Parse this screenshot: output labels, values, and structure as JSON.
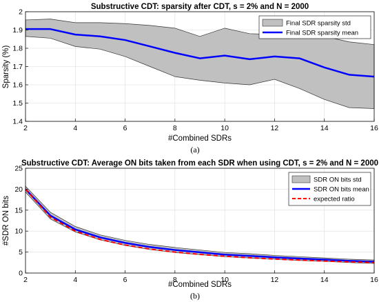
{
  "caption_a": "(a)",
  "caption_b": "(b)",
  "colors": {
    "band_fill": "#c0c0c0",
    "band_edge": "#333333",
    "mean_line": "#0000ff",
    "expected_line": "#ff0000"
  },
  "chart_data": [
    {
      "type": "area",
      "title": "Substructive CDT:  sparsity after CDT, s = 2% and N = 2000",
      "xlabel": "#Combined SDRs",
      "ylabel": "Sparsity (%)",
      "xlim": [
        2,
        16
      ],
      "ylim": [
        1.4,
        2.0
      ],
      "xticks": [
        2,
        4,
        6,
        8,
        10,
        12,
        14,
        16
      ],
      "yticks": [
        1.4,
        1.5,
        1.6,
        1.7,
        1.8,
        1.9,
        2.0
      ],
      "ytick_labels": [
        "1.4",
        "1.5",
        "1.6",
        "1.7",
        "1.8",
        "1.9",
        "2"
      ],
      "grid": true,
      "legend_position": "top-right",
      "x": [
        2,
        3,
        4,
        5,
        6,
        7,
        8,
        9,
        10,
        11,
        12,
        13,
        14,
        15,
        16
      ],
      "series": [
        {
          "name": "Final SDR sparsity std",
          "type": "band",
          "lower": [
            1.865,
            1.855,
            1.81,
            1.795,
            1.755,
            1.7,
            1.645,
            1.625,
            1.61,
            1.6,
            1.63,
            1.58,
            1.52,
            1.475,
            1.47
          ],
          "upper": [
            1.955,
            1.96,
            1.94,
            1.94,
            1.935,
            1.925,
            1.91,
            1.865,
            1.91,
            1.88,
            1.875,
            1.87,
            1.865,
            1.835,
            1.82
          ]
        },
        {
          "name": "Final SDR sparsity mean",
          "type": "line",
          "values": [
            1.905,
            1.905,
            1.875,
            1.865,
            1.845,
            1.81,
            1.775,
            1.745,
            1.76,
            1.74,
            1.755,
            1.745,
            1.695,
            1.655,
            1.645
          ]
        }
      ]
    },
    {
      "type": "area",
      "title": "Substructive CDT: Average ON bits taken from each SDR when using CDT, s = 2% and N = 2000",
      "xlabel": "#Combined SDRs",
      "ylabel": "#SDR ON bits",
      "xlim": [
        2,
        16
      ],
      "ylim": [
        0,
        25
      ],
      "xticks": [
        2,
        4,
        6,
        8,
        10,
        12,
        14,
        16
      ],
      "yticks": [
        0,
        5,
        10,
        15,
        20,
        25
      ],
      "ytick_labels": [
        "0",
        "5",
        "10",
        "15",
        "20",
        "25"
      ],
      "grid": true,
      "legend_position": "top-right",
      "x": [
        2,
        3,
        4,
        5,
        6,
        7,
        8,
        9,
        10,
        11,
        12,
        13,
        14,
        15,
        16
      ],
      "series": [
        {
          "name": "SDR ON bits std",
          "type": "band",
          "lower": [
            19.3,
            12.9,
            9.8,
            7.9,
            6.6,
            5.6,
            4.9,
            4.4,
            3.9,
            3.6,
            3.3,
            3.0,
            2.8,
            2.5,
            2.3
          ],
          "upper": [
            20.7,
            14.5,
            11.1,
            9.1,
            7.8,
            6.8,
            6.1,
            5.5,
            4.9,
            4.6,
            4.2,
            3.9,
            3.6,
            3.3,
            3.1
          ]
        },
        {
          "name": "SDR ON bits mean",
          "type": "line",
          "values": [
            20.0,
            13.7,
            10.4,
            8.5,
            7.2,
            6.2,
            5.5,
            4.95,
            4.4,
            4.1,
            3.75,
            3.45,
            3.2,
            2.9,
            2.7
          ]
        },
        {
          "name": "expected ratio",
          "type": "dashed-line",
          "values": [
            20.0,
            13.33,
            10.0,
            8.0,
            6.67,
            5.71,
            5.0,
            4.44,
            4.0,
            3.64,
            3.33,
            3.08,
            2.86,
            2.67,
            2.5
          ]
        }
      ]
    }
  ]
}
